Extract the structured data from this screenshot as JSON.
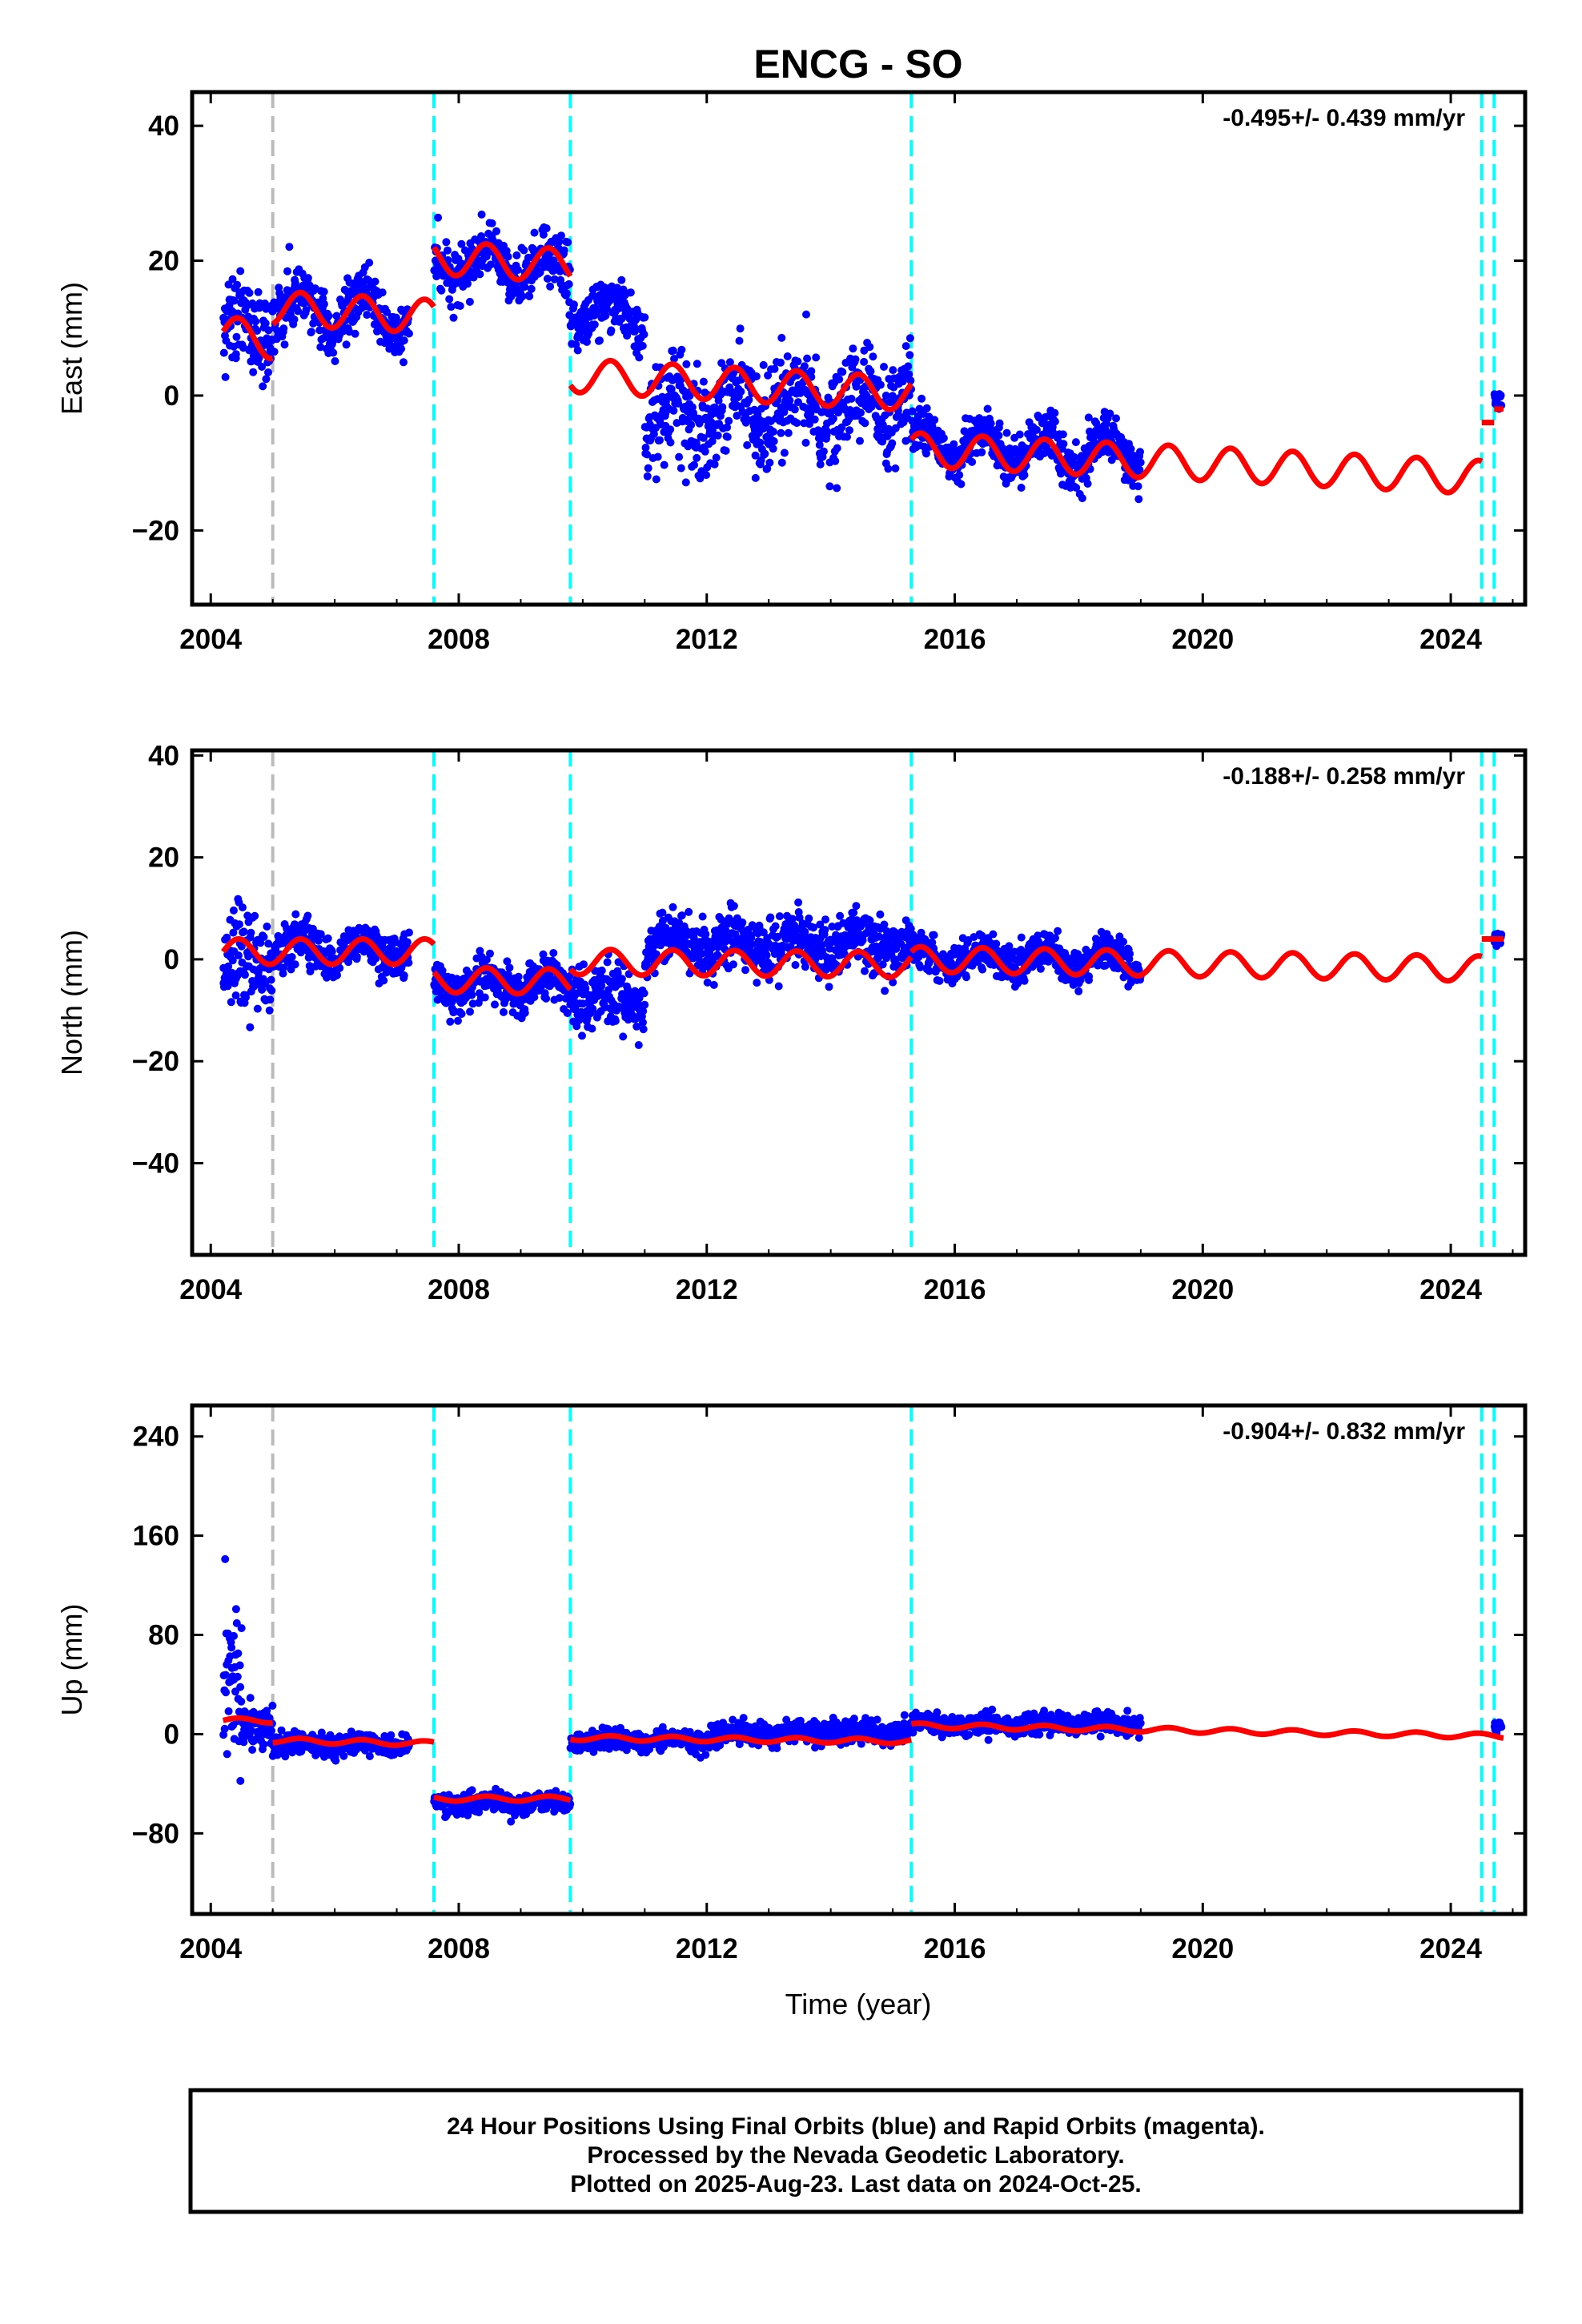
{
  "title": "ENCG - SO",
  "xlabel": "Time (year)",
  "x_ticks": [
    "2004",
    "2008",
    "2012",
    "2016",
    "2020",
    "2024"
  ],
  "footer_lines": [
    "24 Hour Positions Using Final Orbits (blue) and Rapid Orbits (magenta).",
    "Processed by the Nevada Geodetic Laboratory.",
    "Plotted on 2025-Aug-23. Last data on 2024-Oct-25."
  ],
  "colors": {
    "final_orbits": "#0000ff",
    "model": "#ff0000",
    "equipment_change": "#00ffff",
    "other_offset": "#bbbbbb"
  },
  "chart_data": [
    {
      "type": "scatter",
      "component": "East",
      "ylabel": "East (mm)",
      "rate_label": "-0.495+/- 0.439 mm/yr",
      "xlim": [
        2003.7,
        2025.2
      ],
      "ylim": [
        -31,
        45
      ],
      "y_ticks": [
        40,
        20,
        0,
        -20
      ],
      "y_tick_labels": [
        "40",
        "20",
        "0",
        "−20"
      ],
      "grid": false,
      "offset_lines": {
        "cyan": [
          2007.6,
          2009.8,
          2015.3,
          2024.5,
          2024.7
        ],
        "gray": [
          2005.0
        ]
      },
      "model_segments": [
        {
          "x": [
            2004.2,
            2005.0
          ],
          "mean": 9.5,
          "slope": -2,
          "amp": 2.5
        },
        {
          "x": [
            2005.0,
            2007.6
          ],
          "mean": 13,
          "slope": -0.5,
          "amp": 2.5
        },
        {
          "x": [
            2007.6,
            2009.8
          ],
          "mean": 20.5,
          "slope": -0.6,
          "amp": 2.5
        },
        {
          "x": [
            2009.8,
            2015.3
          ],
          "mean": 3.0,
          "slope": -0.5,
          "amp": 2.5
        },
        {
          "x": [
            2015.3,
            2024.5
          ],
          "mean": -8.0,
          "slope": -0.45,
          "amp": 2.5
        },
        {
          "x": [
            2024.5,
            2024.7
          ],
          "mean": -4.0,
          "slope": 0,
          "amp": 0
        },
        {
          "x": [
            2024.7,
            2024.85
          ],
          "mean": -2.0,
          "slope": 0,
          "amp": 0
        }
      ],
      "data_segments": [
        {
          "x": [
            2004.2,
            2005.0
          ],
          "mean": 10,
          "slope": 0,
          "spread": 5,
          "amp": 2
        },
        {
          "x": [
            2005.0,
            2007.2
          ],
          "mean": 13,
          "slope": -0.5,
          "spread": 3,
          "amp": 3
        },
        {
          "x": [
            2007.6,
            2009.8
          ],
          "mean": 20,
          "slope": -0.8,
          "spread": 3,
          "amp": 2.5
        },
        {
          "x": [
            2009.8,
            2011.0
          ],
          "mean": 13,
          "slope": -1,
          "spread": 3,
          "amp": 2
        },
        {
          "x": [
            2011.0,
            2015.3
          ],
          "mean": -3,
          "slope": 0.5,
          "spread": 5,
          "amp": 2.5
        },
        {
          "x": [
            2015.3,
            2019.0
          ],
          "mean": -7,
          "slope": -0.5,
          "spread": 2.5,
          "amp": 2.5
        },
        {
          "x": [
            2024.7,
            2024.82
          ],
          "mean": -1,
          "slope": 0,
          "spread": 1,
          "amp": 0
        }
      ]
    },
    {
      "type": "scatter",
      "component": "North",
      "ylabel": "North (mm)",
      "rate_label": "-0.188+/- 0.258 mm/yr",
      "xlim": [
        2003.7,
        2025.2
      ],
      "ylim": [
        -58,
        41
      ],
      "y_ticks": [
        40,
        20,
        0,
        -20,
        -40
      ],
      "y_tick_labels": [
        "40",
        "20",
        "0",
        "−20",
        "−40"
      ],
      "grid": false,
      "offset_lines": {
        "cyan": [
          2007.6,
          2009.8,
          2015.3,
          2024.5,
          2024.7
        ],
        "gray": [
          2005.0
        ]
      },
      "model_segments": [
        {
          "x": [
            2004.2,
            2007.6
          ],
          "mean": 1.5,
          "slope": 0,
          "amp": 2.5
        },
        {
          "x": [
            2007.6,
            2009.8
          ],
          "mean": -4.0,
          "slope": -0.2,
          "amp": 2.5
        },
        {
          "x": [
            2009.8,
            2015.3
          ],
          "mean": -0.5,
          "slope": -0.1,
          "amp": 2.5
        },
        {
          "x": [
            2015.3,
            2024.5
          ],
          "mean": 0.0,
          "slope": -0.2,
          "amp": 2.5
        },
        {
          "x": [
            2024.5,
            2024.85
          ],
          "mean": 4.0,
          "slope": 0,
          "amp": 0
        }
      ],
      "data_segments": [
        {
          "x": [
            2004.2,
            2005.0
          ],
          "mean": 0,
          "slope": 0,
          "spread": 8,
          "amp": 1
        },
        {
          "x": [
            2005.0,
            2007.2
          ],
          "mean": 2,
          "slope": 0,
          "spread": 3,
          "amp": 2
        },
        {
          "x": [
            2007.6,
            2009.8
          ],
          "mean": -5,
          "slope": 0,
          "spread": 3,
          "amp": 2
        },
        {
          "x": [
            2009.8,
            2011.0
          ],
          "mean": -7,
          "slope": -1,
          "spread": 4,
          "amp": 1.5
        },
        {
          "x": [
            2011.0,
            2015.3
          ],
          "mean": 3,
          "slope": 0,
          "spread": 4,
          "amp": 2
        },
        {
          "x": [
            2015.3,
            2019.0
          ],
          "mean": 0,
          "slope": 0,
          "spread": 2.5,
          "amp": 2
        },
        {
          "x": [
            2024.7,
            2024.82
          ],
          "mean": 4,
          "slope": 0,
          "spread": 1,
          "amp": 0
        }
      ]
    },
    {
      "type": "scatter",
      "component": "Up",
      "ylabel": "Up (mm)",
      "rate_label": "-0.904+/- 0.832 mm/yr",
      "xlim": [
        2003.7,
        2025.2
      ],
      "ylim": [
        -145,
        265
      ],
      "y_ticks": [
        240,
        160,
        80,
        0,
        -80
      ],
      "y_tick_labels": [
        "240",
        "160",
        "80",
        "0",
        "−80"
      ],
      "grid": false,
      "offset_lines": {
        "cyan": [
          2007.6,
          2009.8,
          2015.3,
          2024.5,
          2024.7
        ],
        "gray": [
          2005.0
        ]
      },
      "model_segments": [
        {
          "x": [
            2004.2,
            2005.0
          ],
          "mean": 11,
          "slope": 0,
          "amp": 2
        },
        {
          "x": [
            2005.0,
            2007.6
          ],
          "mean": -5,
          "slope": -1,
          "amp": 2
        },
        {
          "x": [
            2007.6,
            2009.8
          ],
          "mean": -52,
          "slope": 0,
          "amp": 2
        },
        {
          "x": [
            2009.8,
            2015.3
          ],
          "mean": -3,
          "slope": -0.5,
          "amp": 2
        },
        {
          "x": [
            2015.3,
            2024.85
          ],
          "mean": 7,
          "slope": -0.9,
          "amp": 2
        }
      ],
      "data_segments": [
        {
          "x": [
            2004.2,
            2004.5
          ],
          "mean": 40,
          "slope": 0,
          "spread": 50,
          "amp": 0
        },
        {
          "x": [
            2004.5,
            2005.0
          ],
          "mean": 5,
          "slope": 0,
          "spread": 10,
          "amp": 0
        },
        {
          "x": [
            2005.0,
            2007.2
          ],
          "mean": -8,
          "slope": 0,
          "spread": 6,
          "amp": 2
        },
        {
          "x": [
            2007.6,
            2009.8
          ],
          "mean": -55,
          "slope": 0,
          "spread": 6,
          "amp": 2
        },
        {
          "x": [
            2009.8,
            2012.0
          ],
          "mean": -5,
          "slope": 0,
          "spread": 6,
          "amp": 2
        },
        {
          "x": [
            2012.0,
            2015.3
          ],
          "mean": 0,
          "slope": 1,
          "spread": 6,
          "amp": 2
        },
        {
          "x": [
            2015.3,
            2019.0
          ],
          "mean": 8,
          "slope": 0,
          "spread": 6,
          "amp": 2
        },
        {
          "x": [
            2024.7,
            2024.82
          ],
          "mean": 6,
          "slope": 0,
          "spread": 3,
          "amp": 0
        }
      ]
    }
  ]
}
